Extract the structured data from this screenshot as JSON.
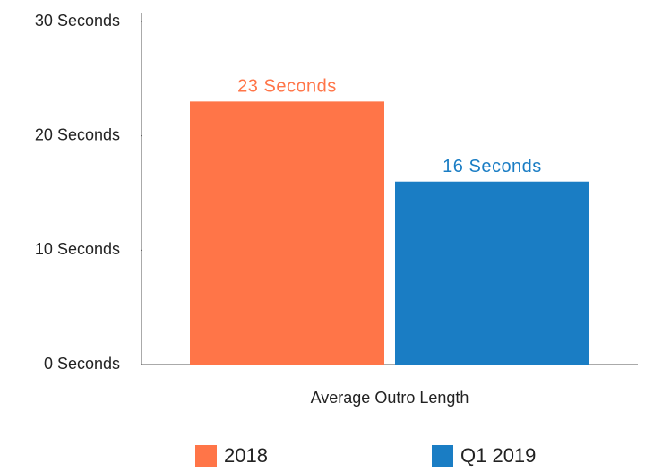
{
  "chart_data": {
    "type": "bar",
    "categories": [
      "Average Outro Length"
    ],
    "series": [
      {
        "name": "2018",
        "color": "#ff7548",
        "values": [
          23
        ],
        "value_labels": [
          "23 Seconds"
        ]
      },
      {
        "name": "Q1 2019",
        "color": "#1a7dc4",
        "values": [
          16
        ],
        "value_labels": [
          "16 Seconds"
        ]
      }
    ],
    "ylim": [
      0,
      30
    ],
    "yticks": [
      {
        "value": 0,
        "label": "0 Seconds"
      },
      {
        "value": 10,
        "label": "10 Seconds"
      },
      {
        "value": 20,
        "label": "20 Seconds"
      },
      {
        "value": 30,
        "label": "30 Seconds"
      }
    ],
    "legend": "bottom"
  }
}
